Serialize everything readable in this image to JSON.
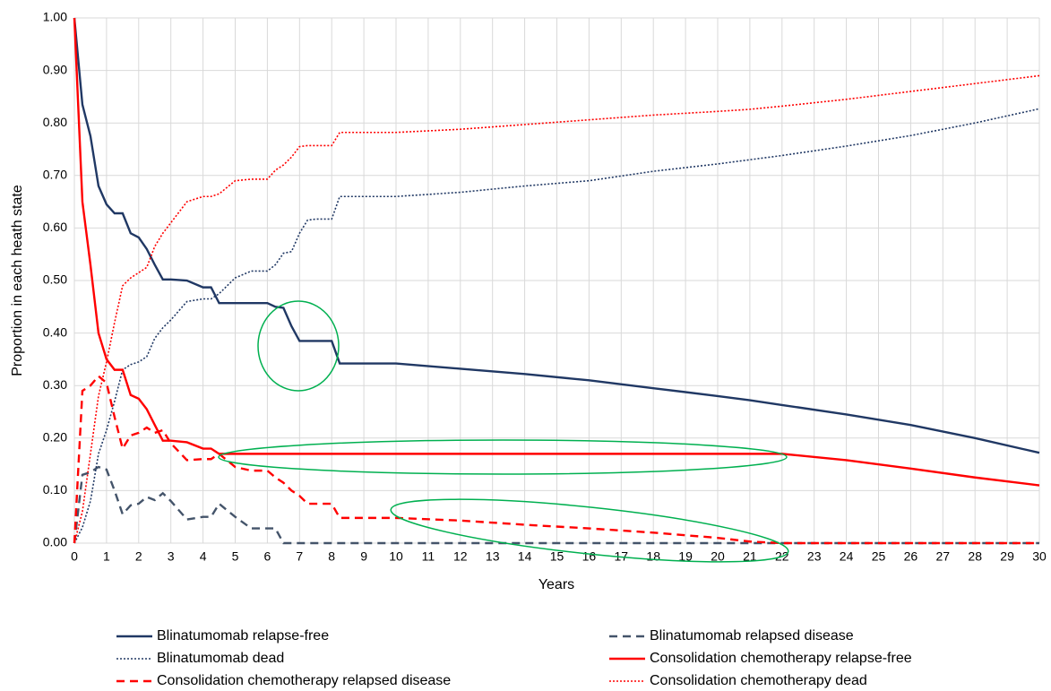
{
  "chart_data": {
    "type": "line",
    "y_label": "Proportion in each heath state",
    "x_label": "Years",
    "x": [
      0,
      0.25,
      0.5,
      0.75,
      1,
      1.25,
      1.5,
      1.75,
      2,
      2.25,
      2.5,
      2.75,
      3,
      3.5,
      4,
      4.25,
      4.5,
      5,
      5.5,
      6,
      6.25,
      6.5,
      6.75,
      7,
      7.25,
      7.5,
      8,
      8.25,
      9,
      10,
      12,
      14,
      16,
      18,
      20,
      21,
      22,
      24,
      26,
      28,
      30
    ],
    "series": [
      {
        "name": "Blinatumomab relapse-free",
        "color": "#203864",
        "dash": "solid",
        "values": [
          1.0,
          0.835,
          0.775,
          0.68,
          0.645,
          0.628,
          0.628,
          0.59,
          0.582,
          0.56,
          0.53,
          0.502,
          0.502,
          0.5,
          0.487,
          0.487,
          0.457,
          0.457,
          0.457,
          0.457,
          0.45,
          0.448,
          0.413,
          0.385,
          0.385,
          0.385,
          0.385,
          0.342,
          0.342,
          0.342,
          0.332,
          0.322,
          0.31,
          0.295,
          0.28,
          0.272,
          0.263,
          0.245,
          0.225,
          0.2,
          0.172
        ]
      },
      {
        "name": "Blinatumomab relapsed disease",
        "color": "#44546a",
        "dash": "dash",
        "values": [
          0,
          0.13,
          0.135,
          0.145,
          0.14,
          0.1,
          0.055,
          0.072,
          0.075,
          0.088,
          0.082,
          0.095,
          0.08,
          0.045,
          0.05,
          0.05,
          0.075,
          0.05,
          0.028,
          0.028,
          0.028,
          0,
          0,
          0,
          0,
          0,
          0,
          0,
          0,
          0,
          0,
          0,
          0,
          0,
          0,
          0,
          0,
          0,
          0,
          0,
          0
        ]
      },
      {
        "name": "Blinatumomab dead",
        "color": "#203864",
        "dash": "dot",
        "values": [
          0,
          0.03,
          0.08,
          0.17,
          0.215,
          0.27,
          0.33,
          0.34,
          0.345,
          0.355,
          0.39,
          0.41,
          0.425,
          0.46,
          0.465,
          0.465,
          0.475,
          0.505,
          0.518,
          0.518,
          0.53,
          0.552,
          0.555,
          0.59,
          0.615,
          0.617,
          0.617,
          0.66,
          0.66,
          0.66,
          0.668,
          0.68,
          0.69,
          0.708,
          0.722,
          0.73,
          0.738,
          0.756,
          0.776,
          0.8,
          0.827
        ]
      },
      {
        "name": "Consolidation chemotherapy relapse-free",
        "color": "#ff0000",
        "dash": "solid",
        "values": [
          1.0,
          0.65,
          0.53,
          0.4,
          0.35,
          0.33,
          0.33,
          0.282,
          0.275,
          0.255,
          0.225,
          0.195,
          0.195,
          0.192,
          0.18,
          0.18,
          0.17,
          0.17,
          0.17,
          0.17,
          0.17,
          0.17,
          0.17,
          0.17,
          0.17,
          0.17,
          0.17,
          0.17,
          0.17,
          0.17,
          0.17,
          0.17,
          0.17,
          0.17,
          0.17,
          0.17,
          0.17,
          0.158,
          0.142,
          0.125,
          0.11
        ]
      },
      {
        "name": "Consolidation chemotherapy relapsed disease",
        "color": "#ff0000",
        "dash": "dash",
        "values": [
          0,
          0.29,
          0.3,
          0.318,
          0.305,
          0.24,
          0.18,
          0.205,
          0.21,
          0.22,
          0.21,
          0.215,
          0.19,
          0.158,
          0.16,
          0.16,
          0.17,
          0.145,
          0.138,
          0.138,
          0.125,
          0.115,
          0.1,
          0.09,
          0.075,
          0.075,
          0.075,
          0.048,
          0.048,
          0.048,
          0.043,
          0.035,
          0.028,
          0.02,
          0.01,
          0.003,
          0,
          0,
          0,
          0,
          0
        ]
      },
      {
        "name": "Consolidation chemotherapy dead",
        "color": "#ff0000",
        "dash": "dot",
        "values": [
          0,
          0.06,
          0.17,
          0.28,
          0.345,
          0.42,
          0.49,
          0.505,
          0.515,
          0.525,
          0.565,
          0.59,
          0.61,
          0.65,
          0.66,
          0.66,
          0.665,
          0.69,
          0.693,
          0.693,
          0.71,
          0.72,
          0.735,
          0.755,
          0.757,
          0.757,
          0.757,
          0.782,
          0.782,
          0.782,
          0.788,
          0.797,
          0.806,
          0.815,
          0.822,
          0.826,
          0.832,
          0.845,
          0.86,
          0.875,
          0.89
        ]
      }
    ],
    "xlim": [
      0,
      30
    ],
    "xticks": [
      0,
      1,
      2,
      3,
      4,
      5,
      6,
      7,
      8,
      9,
      10,
      11,
      12,
      13,
      14,
      15,
      16,
      17,
      18,
      19,
      20,
      21,
      22,
      23,
      24,
      25,
      26,
      27,
      28,
      29,
      30
    ],
    "ylim": [
      0,
      1
    ],
    "yticks": [
      {
        "value": 0,
        "label": "0.00"
      },
      {
        "value": 0.1,
        "label": "0.10"
      },
      {
        "value": 0.2,
        "label": "0.20"
      },
      {
        "value": 0.3,
        "label": "0.30"
      },
      {
        "value": 0.4,
        "label": "0.40"
      },
      {
        "value": 0.5,
        "label": "0.50"
      },
      {
        "value": 0.6,
        "label": "0.60"
      },
      {
        "value": 0.7,
        "label": "0.70"
      },
      {
        "value": 0.8,
        "label": "0.80"
      },
      {
        "value": 0.9,
        "label": "0.90"
      },
      {
        "value": 1,
        "label": "1.00"
      }
    ],
    "grid": true
  }
}
